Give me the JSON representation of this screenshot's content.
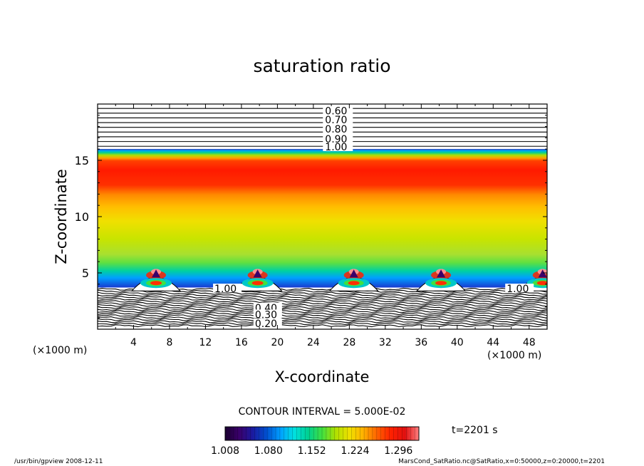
{
  "chart_data": {
    "type": "heatmap",
    "title": "saturation ratio",
    "xlabel": "X-coordinate",
    "ylabel": "Z-coordinate",
    "x_unit_left": "(×1000 m)",
    "x_unit_right": "(×1000 m)",
    "xlim": [
      0,
      50
    ],
    "ylim": [
      0,
      20
    ],
    "x_ticks": [
      "4",
      "8",
      "12",
      "16",
      "20",
      "24",
      "28",
      "32",
      "36",
      "40",
      "44",
      "48"
    ],
    "x_tick_values": [
      4,
      8,
      12,
      16,
      20,
      24,
      28,
      32,
      36,
      40,
      44,
      48
    ],
    "y_ticks": [
      "5",
      "10",
      "15"
    ],
    "y_tick_values": [
      5,
      10,
      15
    ],
    "contour_interval": "CONTOUR INTERVAL = 5.000E-02",
    "time_label": "t=2201 s",
    "upper_contour_labels": [
      {
        "text": "0.60",
        "z": 19.4
      },
      {
        "text": "0.70",
        "z": 18.6
      },
      {
        "text": "0.80",
        "z": 17.8
      },
      {
        "text": "0.90",
        "z": 16.9
      },
      {
        "text": "1.00",
        "z": 16.2
      }
    ],
    "lower_contour_labels": [
      {
        "text": "1.00",
        "x": 13.0,
        "z": 3.6
      },
      {
        "text": "1.00",
        "x": 45.5,
        "z": 3.6
      },
      {
        "text": "0.40",
        "x": 17.5,
        "z": 1.9
      },
      {
        "text": "0.30",
        "x": 17.5,
        "z": 1.3
      },
      {
        "text": "0.20",
        "x": 17.5,
        "z": 0.5
      }
    ],
    "bubbles_x": [
      6.5,
      17.8,
      28.5,
      38.2,
      49.5
    ],
    "colorbar": {
      "min": 1.008,
      "max": 1.33,
      "tick_labels": [
        "1.008",
        "1.080",
        "1.152",
        "1.224",
        "1.296"
      ],
      "tick_values": [
        1.008,
        1.08,
        1.152,
        1.224,
        1.296
      ],
      "colormap": [
        "#1a0030",
        "#3a006a",
        "#1a1aa0",
        "#0050d0",
        "#00a0ff",
        "#00e0e0",
        "#00d090",
        "#40e040",
        "#b0e000",
        "#f0e000",
        "#ffb000",
        "#ff6000",
        "#ff2000",
        "#e01010",
        "#ff8080"
      ]
    }
  },
  "footer": {
    "program": "/usr/bin/gpview  2008-12-11",
    "source": "MarsCond_SatRatio.nc@SatRatio,x=0:50000,z=0:20000,t=2201"
  }
}
